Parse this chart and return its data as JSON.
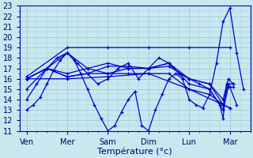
{
  "xlabel": "Température (°c)",
  "bg_color": "#c8e8f0",
  "line_color": "#0000cc",
  "grid_color": "#a0c8d8",
  "ylim": [
    11,
    23
  ],
  "yticks": [
    11,
    12,
    13,
    14,
    15,
    16,
    17,
    18,
    19,
    20,
    21,
    22,
    23
  ],
  "x_labels": [
    "Ven",
    "Mer",
    "Sam",
    "Dim",
    "Lun",
    "Mar"
  ],
  "x_positions": [
    0,
    24,
    48,
    72,
    96,
    120
  ],
  "xlim": [
    -4,
    132
  ],
  "series": [
    {
      "x": [
        0,
        4,
        8,
        12,
        16,
        20,
        24,
        28,
        32,
        36,
        40,
        44,
        48,
        52,
        56,
        60,
        64,
        68,
        72,
        76,
        80,
        84,
        88,
        92,
        96,
        100,
        104,
        108,
        112,
        116,
        120,
        124,
        128
      ],
      "y": [
        13,
        13.5,
        14.2,
        15.5,
        16.8,
        17.8,
        18.5,
        17.8,
        16.5,
        15.0,
        13.5,
        12.2,
        11.0,
        11.5,
        12.8,
        14.0,
        14.8,
        11.5,
        11.0,
        13.0,
        14.5,
        16.0,
        16.5,
        16.0,
        14.0,
        13.5,
        13.2,
        14.5,
        17.5,
        21.5,
        22.8,
        18.5,
        15.0
      ]
    },
    {
      "x": [
        0,
        6,
        12,
        18,
        24,
        30,
        36,
        42,
        48,
        54,
        60,
        66,
        72,
        78,
        84,
        90,
        96,
        102,
        108,
        114,
        116,
        118,
        120,
        124
      ],
      "y": [
        14.0,
        15.5,
        17.0,
        18.0,
        18.5,
        17.5,
        16.5,
        15.5,
        16.0,
        17.0,
        17.5,
        16.0,
        17.0,
        18.0,
        17.5,
        16.5,
        16.0,
        15.5,
        15.0,
        13.5,
        12.2,
        15.5,
        15.2,
        13.5
      ]
    },
    {
      "x": [
        0,
        12,
        24,
        36,
        48,
        60,
        72,
        84,
        96,
        108,
        116,
        119,
        122
      ],
      "y": [
        15.0,
        17.0,
        18.5,
        17.0,
        16.5,
        17.0,
        17.0,
        17.5,
        15.5,
        15.0,
        13.0,
        15.2,
        15.2
      ]
    },
    {
      "x": [
        0,
        12,
        24,
        36,
        48,
        60,
        72,
        84,
        96,
        108,
        116,
        119,
        122
      ],
      "y": [
        16.0,
        17.0,
        16.2,
        16.5,
        17.2,
        17.2,
        17.0,
        17.5,
        16.0,
        15.5,
        13.5,
        15.5,
        15.5
      ]
    },
    {
      "x": [
        0,
        12,
        24,
        36,
        48,
        60,
        72,
        84,
        96,
        108,
        116,
        119,
        122
      ],
      "y": [
        16.0,
        17.0,
        16.5,
        17.0,
        17.5,
        17.0,
        17.0,
        17.2,
        16.0,
        15.5,
        14.0,
        16.0,
        15.5
      ]
    },
    {
      "x": [
        0,
        12,
        24,
        36,
        48,
        60,
        72,
        84,
        96,
        108,
        116,
        120
      ],
      "y": [
        16.0,
        17.0,
        16.2,
        16.5,
        16.5,
        16.5,
        16.5,
        16.5,
        15.0,
        14.5,
        13.5,
        13.2
      ]
    },
    {
      "x": [
        0,
        24,
        48,
        72,
        96,
        116,
        120
      ],
      "y": [
        16.0,
        16.0,
        16.2,
        16.5,
        15.0,
        13.5,
        13.2
      ]
    },
    {
      "x": [
        0,
        24,
        48,
        72,
        96,
        120
      ],
      "y": [
        16.2,
        19.0,
        19.0,
        19.0,
        19.0,
        19.0
      ]
    }
  ]
}
